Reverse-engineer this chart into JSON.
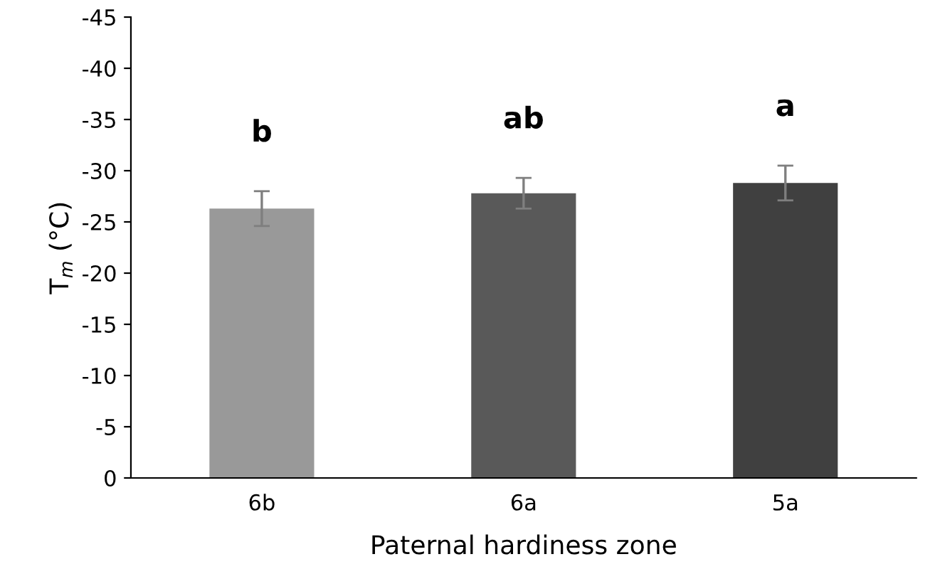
{
  "chart_data": {
    "type": "bar",
    "xlabel": "Paternal hardiness zone",
    "ylabel": "T$_{m}$ (°C)",
    "categories": [
      "6b",
      "6a",
      "5a"
    ],
    "values": [
      -26.3,
      -27.8,
      -28.8
    ],
    "errors": [
      1.7,
      1.5,
      1.7
    ],
    "colors": [
      "#999999",
      "#595959",
      "#404040"
    ],
    "ylim": [
      0,
      -45
    ],
    "yticks": [
      0,
      -5,
      -10,
      -15,
      -20,
      -25,
      -30,
      -35,
      -40,
      -45
    ],
    "grid": false,
    "legend": false,
    "annotations": [
      "b",
      "ab",
      "a"
    ]
  }
}
